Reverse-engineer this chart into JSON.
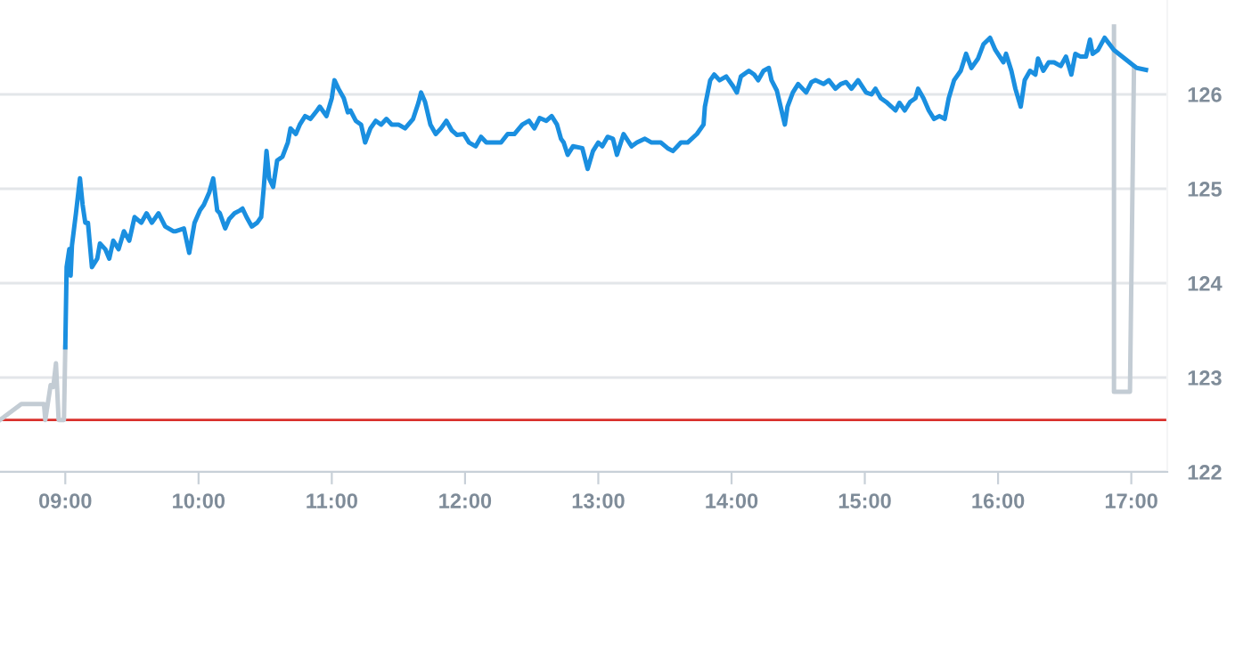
{
  "chart_data": {
    "type": "line",
    "xlim": [
      8.51,
      17.27
    ],
    "ylim": [
      122,
      127
    ],
    "xticks": [
      {
        "value": 9,
        "label": "09:00"
      },
      {
        "value": 10,
        "label": "10:00"
      },
      {
        "value": 11,
        "label": "11:00"
      },
      {
        "value": 12,
        "label": "12:00"
      },
      {
        "value": 13,
        "label": "13:00"
      },
      {
        "value": 14,
        "label": "14:00"
      },
      {
        "value": 15,
        "label": "15:00"
      },
      {
        "value": 16,
        "label": "16:00"
      },
      {
        "value": 17,
        "label": "17:00"
      }
    ],
    "yticks": [
      122,
      123,
      124,
      125,
      126
    ],
    "grid": "y",
    "marker": "none",
    "line_style": "solid",
    "ref_lines": [
      {
        "axis": "y",
        "value": 122.55,
        "color": "#d9302c"
      }
    ],
    "series": [
      {
        "color": "#c3ccd4",
        "x": [
          8.51,
          8.67,
          8.84,
          8.85,
          8.89,
          8.91,
          8.93,
          8.95,
          8.99,
          9.0
        ],
        "values": [
          122.55,
          122.72,
          122.72,
          122.55,
          122.92,
          122.9,
          123.15,
          122.55,
          122.55,
          123.32
        ]
      },
      {
        "color": "#c3ccd4",
        "x": [
          16.87,
          16.87,
          16.99,
          17.02
        ],
        "values": [
          126.72,
          122.85,
          122.85,
          126.28
        ]
      },
      {
        "color": "#1a8fe0",
        "x": [
          9.0,
          9.01,
          9.03,
          9.04,
          9.05,
          9.08,
          9.11,
          9.13,
          9.15,
          9.17,
          9.2,
          9.24,
          9.26,
          9.3,
          9.33,
          9.36,
          9.4,
          9.44,
          9.48,
          9.52,
          9.57,
          9.61,
          9.65,
          9.7,
          9.75,
          9.81,
          9.83,
          9.89,
          9.93,
          9.97,
          10.01,
          10.04,
          10.08,
          10.11,
          10.14,
          10.16,
          10.2,
          10.23,
          10.27,
          10.31,
          10.33,
          10.36,
          10.4,
          10.44,
          10.47,
          10.49,
          10.51,
          10.53,
          10.56,
          10.59,
          10.63,
          10.67,
          10.69,
          10.73,
          10.76,
          10.8,
          10.84,
          10.89,
          10.91,
          10.96,
          11.0,
          11.02,
          11.05,
          11.09,
          11.12,
          11.14,
          11.18,
          11.22,
          11.25,
          11.29,
          11.33,
          11.37,
          11.41,
          11.45,
          11.5,
          11.55,
          11.61,
          11.65,
          11.67,
          11.7,
          11.74,
          11.78,
          11.82,
          11.86,
          11.9,
          11.94,
          11.99,
          12.03,
          12.08,
          12.12,
          12.16,
          12.21,
          12.27,
          12.32,
          12.37,
          12.43,
          12.48,
          12.52,
          12.56,
          12.61,
          12.65,
          12.69,
          12.72,
          12.74,
          12.77,
          12.81,
          12.88,
          12.92,
          12.96,
          13.0,
          13.03,
          13.07,
          13.11,
          13.14,
          13.19,
          13.25,
          13.29,
          13.35,
          13.4,
          13.47,
          13.52,
          13.56,
          13.62,
          13.67,
          13.74,
          13.79,
          13.8,
          13.84,
          13.87,
          13.91,
          13.96,
          14.01,
          14.04,
          14.07,
          14.13,
          14.17,
          14.2,
          14.24,
          14.28,
          14.3,
          14.34,
          14.4,
          14.42,
          14.46,
          14.5,
          14.56,
          14.6,
          14.63,
          14.69,
          14.73,
          14.78,
          14.82,
          14.86,
          14.9,
          14.95,
          15.01,
          15.05,
          15.08,
          15.12,
          15.16,
          15.2,
          15.23,
          15.26,
          15.3,
          15.34,
          15.38,
          15.4,
          15.44,
          15.48,
          15.52,
          15.56,
          15.6,
          15.63,
          15.67,
          15.72,
          15.76,
          15.8,
          15.85,
          15.89,
          15.94,
          15.98,
          16.04,
          16.06,
          16.1,
          16.13,
          16.17,
          16.2,
          16.24,
          16.28,
          16.3,
          16.34,
          16.38,
          16.42,
          16.47,
          16.51,
          16.55,
          16.58,
          16.62,
          16.66,
          16.69,
          16.71,
          16.75,
          16.8,
          16.87,
          17.04,
          17.11
        ],
        "values": [
          123.32,
          124.17,
          124.36,
          124.08,
          124.4,
          124.74,
          125.11,
          124.83,
          124.64,
          124.64,
          124.17,
          124.26,
          124.42,
          124.36,
          124.26,
          124.45,
          124.36,
          124.55,
          124.45,
          124.7,
          124.64,
          124.74,
          124.64,
          124.74,
          124.6,
          124.55,
          124.55,
          124.58,
          124.32,
          124.64,
          124.77,
          124.83,
          124.96,
          125.11,
          124.77,
          124.74,
          124.58,
          124.68,
          124.74,
          124.77,
          124.79,
          124.7,
          124.6,
          124.64,
          124.7,
          125.02,
          125.4,
          125.11,
          125.02,
          125.3,
          125.34,
          125.49,
          125.64,
          125.58,
          125.68,
          125.77,
          125.74,
          125.83,
          125.87,
          125.77,
          125.96,
          126.15,
          126.06,
          125.96,
          125.81,
          125.83,
          125.72,
          125.68,
          125.49,
          125.64,
          125.72,
          125.68,
          125.74,
          125.68,
          125.68,
          125.64,
          125.74,
          125.91,
          126.02,
          125.92,
          125.68,
          125.58,
          125.64,
          125.72,
          125.62,
          125.57,
          125.58,
          125.49,
          125.45,
          125.55,
          125.49,
          125.49,
          125.49,
          125.58,
          125.58,
          125.68,
          125.72,
          125.64,
          125.75,
          125.72,
          125.77,
          125.68,
          125.53,
          125.49,
          125.36,
          125.45,
          125.43,
          125.21,
          125.4,
          125.49,
          125.45,
          125.55,
          125.53,
          125.36,
          125.58,
          125.45,
          125.49,
          125.53,
          125.49,
          125.49,
          125.43,
          125.4,
          125.49,
          125.49,
          125.58,
          125.68,
          125.87,
          126.15,
          126.21,
          126.15,
          126.19,
          126.09,
          126.02,
          126.19,
          126.25,
          126.21,
          126.15,
          126.25,
          126.28,
          126.15,
          126.04,
          125.68,
          125.87,
          126.02,
          126.11,
          126.02,
          126.13,
          126.15,
          126.11,
          126.15,
          126.06,
          126.11,
          126.13,
          126.06,
          126.15,
          126.02,
          126.0,
          126.06,
          125.96,
          125.92,
          125.87,
          125.83,
          125.91,
          125.83,
          125.92,
          125.96,
          126.06,
          125.96,
          125.83,
          125.74,
          125.77,
          125.74,
          125.96,
          126.15,
          126.25,
          126.43,
          126.28,
          126.38,
          126.53,
          126.6,
          126.47,
          126.34,
          126.43,
          126.25,
          126.06,
          125.87,
          126.15,
          126.25,
          126.21,
          126.38,
          126.25,
          126.34,
          126.34,
          126.3,
          126.4,
          126.21,
          126.43,
          126.4,
          126.4,
          126.58,
          126.43,
          126.47,
          126.6,
          126.47,
          126.28,
          126.26
        ]
      }
    ]
  }
}
